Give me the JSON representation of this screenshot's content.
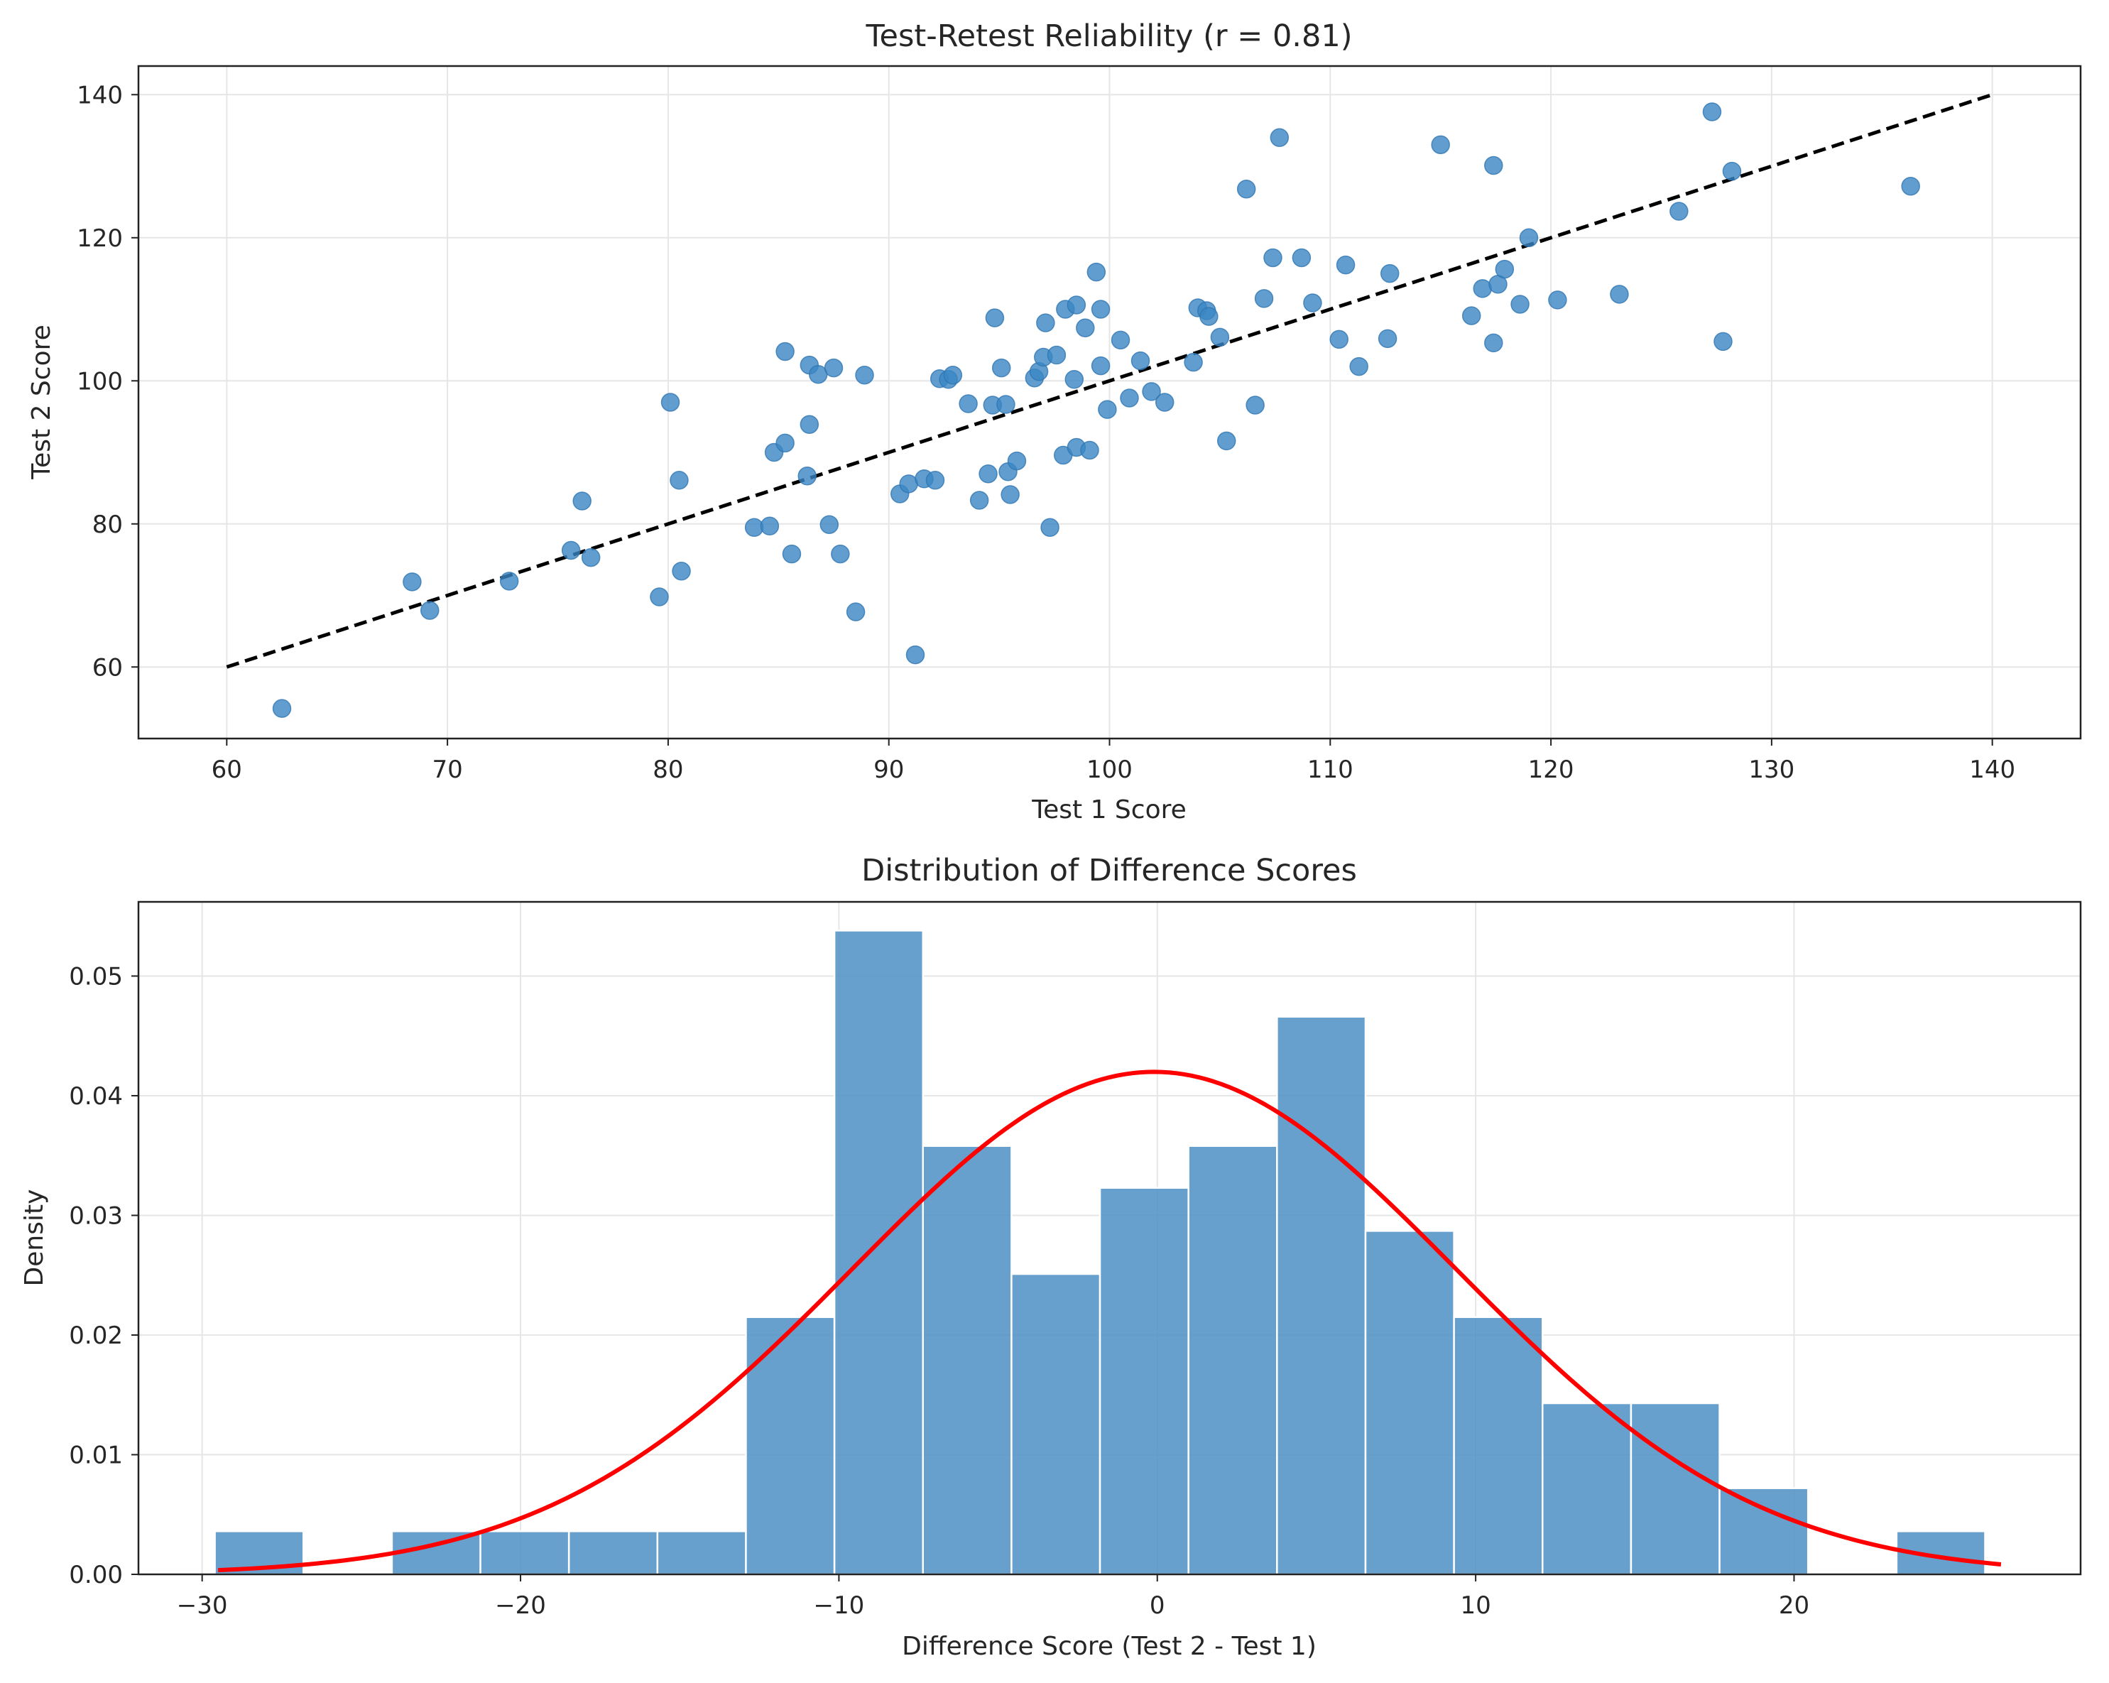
{
  "colors": {
    "points": "#3a86c3",
    "bars": "#4c8fc4",
    "fit_line": "#000000",
    "normal_curve": "#ff0000"
  },
  "chart_data": [
    {
      "type": "scatter",
      "title": "Test-Retest Reliability (r = 0.81)",
      "xlabel": "Test 1 Score",
      "ylabel": "Test 2 Score",
      "xlim": [
        56,
        144
      ],
      "ylim": [
        50,
        144
      ],
      "xticks": [
        60,
        70,
        80,
        90,
        100,
        110,
        120,
        130,
        140
      ],
      "yticks": [
        60,
        80,
        100,
        120,
        140
      ],
      "grid": true,
      "reference_line": {
        "style": "dashed",
        "x": [
          60,
          140
        ],
        "y": [
          60,
          140
        ]
      },
      "points": [
        [
          62.5,
          54.2
        ],
        [
          68.4,
          71.9
        ],
        [
          69.2,
          67.9
        ],
        [
          72.8,
          72.0
        ],
        [
          75.6,
          76.3
        ],
        [
          76.1,
          83.2
        ],
        [
          76.5,
          75.3
        ],
        [
          79.6,
          69.8
        ],
        [
          80.1,
          97.0
        ],
        [
          80.5,
          86.1
        ],
        [
          80.6,
          73.4
        ],
        [
          83.9,
          79.5
        ],
        [
          84.6,
          79.7
        ],
        [
          84.8,
          90.0
        ],
        [
          85.3,
          104.1
        ],
        [
          85.3,
          91.3
        ],
        [
          85.6,
          75.8
        ],
        [
          86.3,
          86.7
        ],
        [
          86.4,
          93.9
        ],
        [
          86.4,
          102.2
        ],
        [
          86.8,
          100.9
        ],
        [
          87.3,
          79.9
        ],
        [
          87.5,
          101.8
        ],
        [
          87.8,
          75.8
        ],
        [
          88.5,
          67.7
        ],
        [
          88.9,
          100.8
        ],
        [
          90.5,
          84.2
        ],
        [
          90.9,
          85.6
        ],
        [
          91.2,
          61.7
        ],
        [
          91.6,
          86.3
        ],
        [
          92.1,
          86.1
        ],
        [
          92.3,
          100.3
        ],
        [
          92.7,
          100.2
        ],
        [
          92.9,
          100.8
        ],
        [
          93.6,
          96.8
        ],
        [
          94.1,
          83.3
        ],
        [
          94.5,
          87.0
        ],
        [
          94.7,
          96.6
        ],
        [
          94.8,
          108.8
        ],
        [
          95.1,
          101.8
        ],
        [
          95.3,
          96.7
        ],
        [
          95.4,
          87.3
        ],
        [
          95.5,
          84.1
        ],
        [
          95.8,
          88.8
        ],
        [
          96.6,
          100.4
        ],
        [
          96.8,
          101.3
        ],
        [
          97.0,
          103.3
        ],
        [
          97.1,
          108.1
        ],
        [
          97.3,
          79.5
        ],
        [
          97.6,
          103.6
        ],
        [
          97.9,
          89.6
        ],
        [
          98.0,
          110.0
        ],
        [
          98.4,
          100.2
        ],
        [
          98.5,
          110.6
        ],
        [
          98.5,
          90.7
        ],
        [
          98.9,
          107.4
        ],
        [
          99.1,
          90.3
        ],
        [
          99.4,
          115.2
        ],
        [
          99.6,
          110.0
        ],
        [
          99.6,
          102.1
        ],
        [
          99.9,
          96.0
        ],
        [
          100.5,
          105.7
        ],
        [
          100.9,
          97.6
        ],
        [
          101.4,
          102.8
        ],
        [
          101.9,
          98.5
        ],
        [
          102.5,
          97.0
        ],
        [
          103.8,
          102.6
        ],
        [
          104.0,
          110.2
        ],
        [
          104.4,
          109.8
        ],
        [
          104.5,
          109.0
        ],
        [
          105.0,
          106.1
        ],
        [
          105.3,
          91.6
        ],
        [
          106.2,
          126.8
        ],
        [
          106.6,
          96.6
        ],
        [
          107.0,
          111.5
        ],
        [
          107.4,
          117.2
        ],
        [
          107.7,
          134.0
        ],
        [
          108.7,
          117.2
        ],
        [
          109.2,
          110.9
        ],
        [
          110.4,
          105.8
        ],
        [
          110.7,
          116.2
        ],
        [
          111.3,
          102.0
        ],
        [
          112.6,
          105.9
        ],
        [
          112.7,
          115.0
        ],
        [
          115.0,
          133.0
        ],
        [
          116.4,
          109.1
        ],
        [
          116.9,
          112.9
        ],
        [
          117.4,
          105.3
        ],
        [
          117.4,
          130.1
        ],
        [
          117.6,
          113.5
        ],
        [
          117.9,
          115.6
        ],
        [
          118.6,
          110.7
        ],
        [
          119.0,
          120.0
        ],
        [
          120.3,
          111.3
        ],
        [
          123.1,
          112.1
        ],
        [
          125.8,
          123.7
        ],
        [
          127.3,
          137.6
        ],
        [
          127.8,
          105.5
        ],
        [
          128.2,
          129.3
        ],
        [
          136.3,
          127.2
        ]
      ]
    },
    {
      "type": "bar",
      "subtype": "histogram",
      "title": "Distribution of Difference Scores",
      "xlabel": "Difference Score (Test 2 - Test 1)",
      "ylabel": "Density",
      "xlim": [
        -32,
        29
      ],
      "ylim": [
        0,
        0.0562
      ],
      "xticks": [
        -30,
        -20,
        -10,
        0,
        10,
        20
      ],
      "yticks": [
        0.0,
        0.01,
        0.02,
        0.03,
        0.04,
        0.05
      ],
      "ytick_labels": [
        "0.00",
        "0.01",
        "0.02",
        "0.03",
        "0.04",
        "0.05"
      ],
      "grid": true,
      "bins": {
        "start": -29.6,
        "width": 2.78
      },
      "values": [
        0.0036,
        0,
        0.0036,
        0.0036,
        0.0036,
        0.0036,
        0.0215,
        0.0538,
        0.0358,
        0.0251,
        0.0323,
        0.0358,
        0.0466,
        0.0287,
        0.0215,
        0.0143,
        0.0143,
        0.0072,
        0,
        0.0036
      ],
      "normal_curve": {
        "mean": -0.1,
        "sd": 9.5,
        "x_range": [
          -29.5,
          26.5
        ]
      }
    }
  ]
}
